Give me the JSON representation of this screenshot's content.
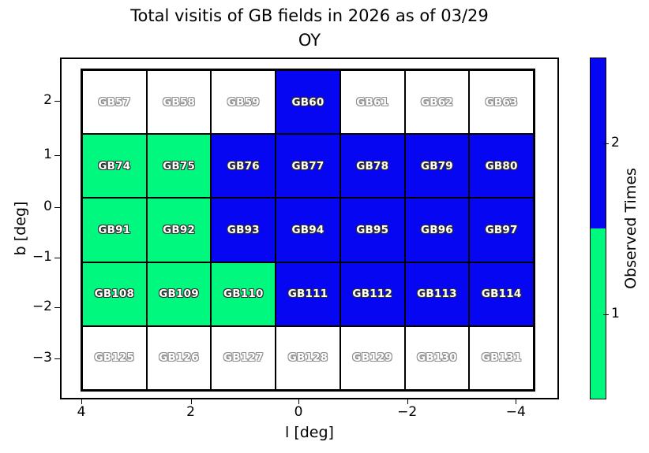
{
  "title": {
    "line1": "Total visitis of GB fields in 2026 as of 03/29",
    "line2": "OY"
  },
  "axes": {
    "xlabel": "l [deg]",
    "ylabel": "b [deg]",
    "xtick_labels": [
      "4",
      "2",
      "0",
      "−2",
      "−4"
    ],
    "ytick_labels": [
      "2",
      "1",
      "0",
      "−1",
      "−2",
      "−3"
    ]
  },
  "colorbar": {
    "label": "Observed Times",
    "tick_labels": [
      "2",
      "1"
    ],
    "color_none": "#FFFFFF",
    "color_once": "#00F87E",
    "color_twice": "#0606F2"
  },
  "chart_data": {
    "type": "heatmap",
    "title": "Total visitis of GB fields in 2026 as of 03/29 OY",
    "xlabel": "l [deg]",
    "ylabel": "b [deg]",
    "xticks": [
      4,
      2,
      0,
      -2,
      -4
    ],
    "yticks": [
      2,
      1,
      0,
      -1,
      -2,
      -3
    ],
    "x_axis_reversed": true,
    "grid_shape": {
      "rows": 5,
      "cols": 7
    },
    "colorbar": {
      "label": "Observed Times",
      "tick_values": [
        1,
        2
      ],
      "value_colors": {
        "0": "#FFFFFF",
        "1": "#00F87E",
        "2": "#0606F2"
      },
      "position": "right"
    },
    "value_meaning": "observed times per field (0 = white/unobserved, 1 = green, 2 = blue)",
    "rows": [
      {
        "fields": [
          {
            "name": "GB57",
            "observed": 0
          },
          {
            "name": "GB58",
            "observed": 0
          },
          {
            "name": "GB59",
            "observed": 0
          },
          {
            "name": "GB60",
            "observed": 2
          },
          {
            "name": "GB61",
            "observed": 0
          },
          {
            "name": "GB62",
            "observed": 0
          },
          {
            "name": "GB63",
            "observed": 0
          }
        ]
      },
      {
        "fields": [
          {
            "name": "GB74",
            "observed": 1
          },
          {
            "name": "GB75",
            "observed": 1
          },
          {
            "name": "GB76",
            "observed": 2
          },
          {
            "name": "GB77",
            "observed": 2
          },
          {
            "name": "GB78",
            "observed": 2
          },
          {
            "name": "GB79",
            "observed": 2
          },
          {
            "name": "GB80",
            "observed": 2
          }
        ]
      },
      {
        "fields": [
          {
            "name": "GB91",
            "observed": 1
          },
          {
            "name": "GB92",
            "observed": 1
          },
          {
            "name": "GB93",
            "observed": 2
          },
          {
            "name": "GB94",
            "observed": 2
          },
          {
            "name": "GB95",
            "observed": 2
          },
          {
            "name": "GB96",
            "observed": 2
          },
          {
            "name": "GB97",
            "observed": 2
          }
        ]
      },
      {
        "fields": [
          {
            "name": "GB108",
            "observed": 1
          },
          {
            "name": "GB109",
            "observed": 1
          },
          {
            "name": "GB110",
            "observed": 1
          },
          {
            "name": "GB111",
            "observed": 2
          },
          {
            "name": "GB112",
            "observed": 2
          },
          {
            "name": "GB113",
            "observed": 2
          },
          {
            "name": "GB114",
            "observed": 2
          }
        ]
      },
      {
        "fields": [
          {
            "name": "GB125",
            "observed": 0
          },
          {
            "name": "GB126",
            "observed": 0
          },
          {
            "name": "GB127",
            "observed": 0
          },
          {
            "name": "GB128",
            "observed": 0
          },
          {
            "name": "GB129",
            "observed": 0
          },
          {
            "name": "GB130",
            "observed": 0
          },
          {
            "name": "GB131",
            "observed": 0
          }
        ]
      }
    ]
  }
}
